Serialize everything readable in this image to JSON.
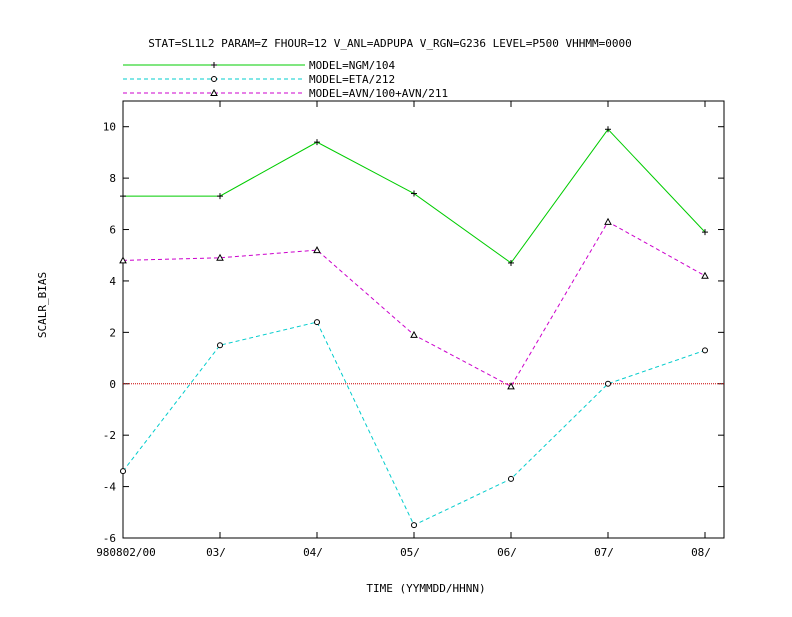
{
  "chart_data": {
    "type": "line",
    "title": "STAT=SL1L2 PARAM=Z FHOUR=12 V_ANL=ADPUPA V_RGN=G236 LEVEL=P500 VHHMM=0000",
    "xlabel": "TIME (YYMMDD/HHNN)",
    "ylabel": "SCALR_BIAS",
    "categories": [
      "980802/00",
      "03/",
      "04/",
      "05/",
      "06/",
      "07/",
      "08/"
    ],
    "ylim": [
      -6,
      11
    ],
    "yticks": [
      -6,
      -4,
      -2,
      0,
      2,
      4,
      6,
      8,
      10
    ],
    "legend_position": "top-left",
    "zero_line": {
      "value": 0,
      "color": "#cc0000"
    },
    "series": [
      {
        "name": "MODEL=NGM/104",
        "values": [
          7.3,
          7.3,
          9.4,
          7.4,
          4.7,
          9.9,
          5.9
        ],
        "color": "#00cc00",
        "dash": "solid",
        "marker": "plus"
      },
      {
        "name": "MODEL=ETA/212",
        "values": [
          -3.4,
          1.5,
          2.4,
          -5.5,
          -3.7,
          0.0,
          1.3
        ],
        "color": "#00cccc",
        "dash": "dashed",
        "marker": "circle"
      },
      {
        "name": "MODEL=AVN/100+AVN/211",
        "values": [
          4.8,
          4.9,
          5.2,
          1.9,
          -0.1,
          6.3,
          4.2
        ],
        "color": "#cc00cc",
        "dash": "dashed",
        "marker": "triangle"
      }
    ]
  }
}
